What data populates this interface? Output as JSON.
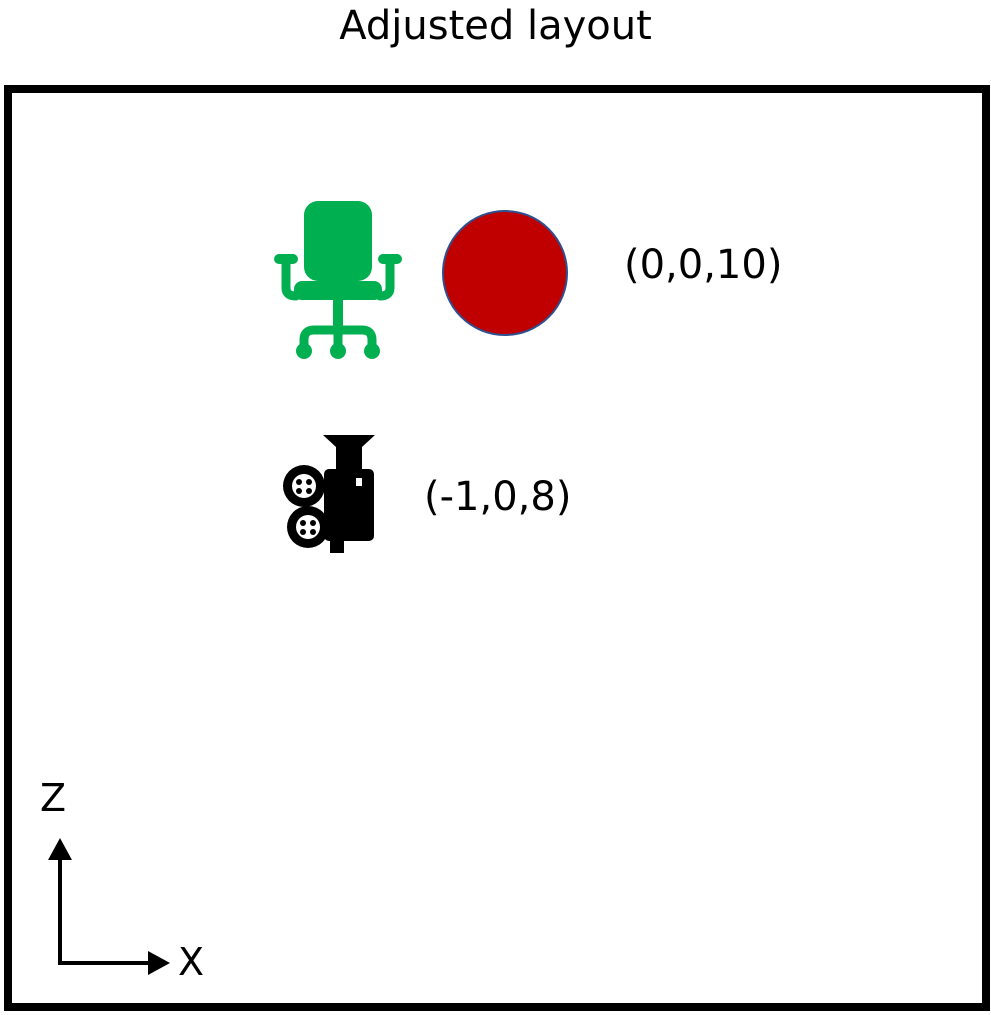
{
  "title": "Adjusted layout",
  "object": {
    "label": "(0,0,10)",
    "chair_icon": "office-chair-icon",
    "sphere_color": "#c00000",
    "sphere_outline": "#2f4f8f",
    "chair_color": "#00b050"
  },
  "camera": {
    "label": "(-1,0,8)",
    "icon": "movie-camera-icon",
    "color": "#000000"
  },
  "axes": {
    "vertical_label": "Z",
    "horizontal_label": "X"
  }
}
